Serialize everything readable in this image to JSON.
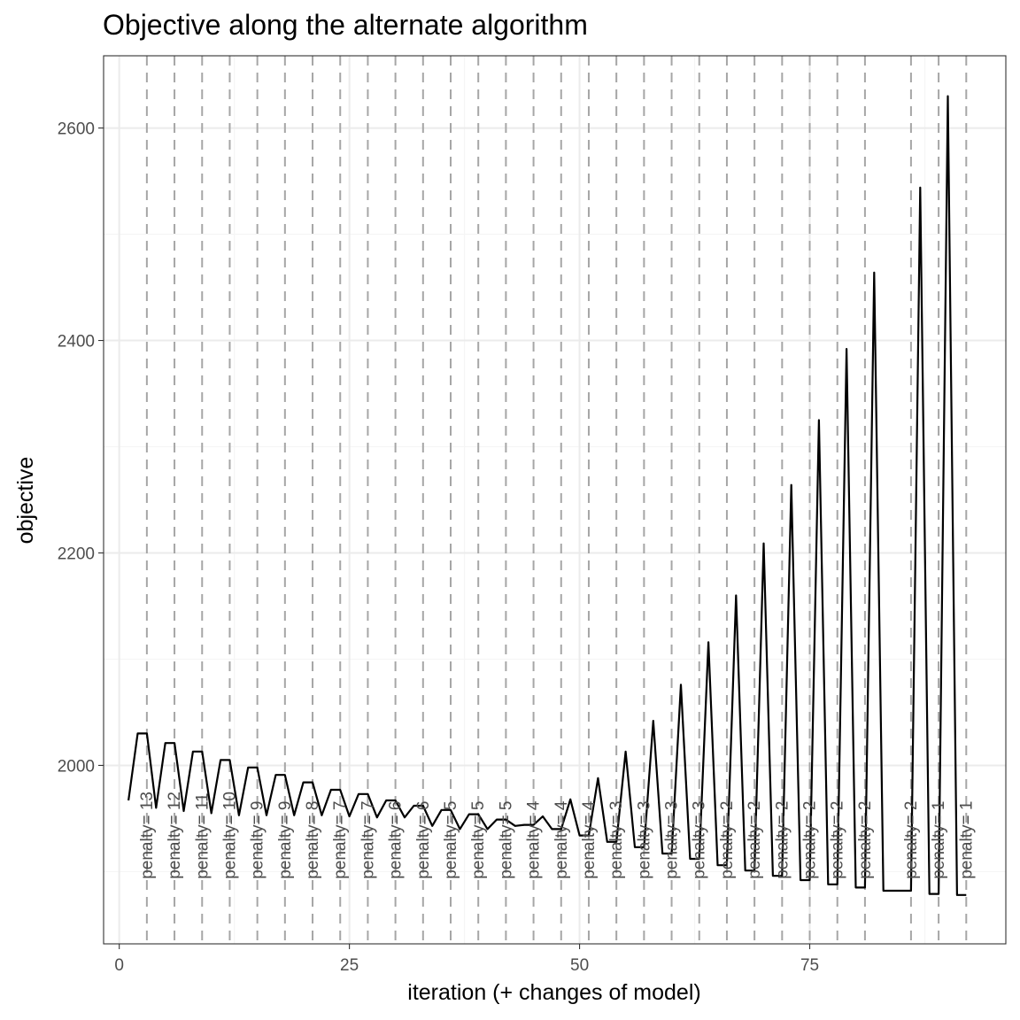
{
  "chart_data": {
    "type": "line",
    "title": "Objective along the alternate algorithm",
    "xlabel": "iteration (+ changes of model)",
    "ylabel": "objective",
    "xlim": [
      -1.7,
      96.3
    ],
    "ylim": [
      1832,
      2668
    ],
    "x_ticks": [
      0,
      25,
      50,
      75
    ],
    "x_tick_labels": [
      "0",
      "25",
      "50",
      "75"
    ],
    "y_ticks": [
      2000,
      2200,
      2400,
      2600
    ],
    "y_tick_labels": [
      "2000",
      "2200",
      "2400",
      "2600"
    ],
    "x_minor": [
      12.5,
      37.5,
      62.5,
      87.5
    ],
    "y_minor": [
      1900,
      2100,
      2300,
      2500
    ],
    "grid": true,
    "legend": "none",
    "series": [
      {
        "x": [
          1,
          2,
          3,
          4,
          5,
          6,
          7,
          8,
          9,
          10,
          11,
          12,
          13,
          14,
          15,
          16,
          17,
          18,
          19,
          20,
          21,
          22,
          23,
          24,
          25,
          26,
          27,
          28,
          29,
          30,
          31,
          32,
          33,
          34,
          35,
          36,
          37,
          38,
          39,
          40,
          41,
          42,
          43,
          44,
          45,
          46,
          47,
          48,
          49,
          50,
          51,
          52,
          53,
          54,
          55,
          56,
          57,
          58,
          59,
          60,
          61,
          62,
          63,
          64,
          65,
          66,
          67,
          68,
          69,
          70,
          71,
          72,
          73,
          74,
          75,
          76,
          77,
          78,
          79,
          80,
          81,
          82,
          83,
          84,
          85,
          86,
          87,
          88,
          89,
          90,
          91,
          92
        ],
        "y": [
          1967,
          2030,
          2030,
          1960,
          2021,
          2021,
          1957,
          2013,
          2013,
          1955,
          2005,
          2005,
          1953,
          1998,
          1998,
          1953,
          1991,
          1991,
          1953,
          1984,
          1984,
          1953,
          1977,
          1977,
          1952,
          1973,
          1973,
          1951,
          1967,
          1967,
          1951,
          1962,
          1962,
          1943,
          1958,
          1958,
          1940,
          1954,
          1954,
          1940,
          1949,
          1949,
          1943,
          1944,
          1944,
          1952,
          1940,
          1940,
          1968,
          1934,
          1934,
          1988,
          1928,
          1928,
          2013,
          1923,
          1923,
          2042,
          1917,
          1917,
          2076,
          1912,
          1912,
          2116,
          1906,
          1906,
          2160,
          1901,
          1901,
          2209,
          1896,
          1896,
          2264,
          1892,
          1892,
          2325,
          1888,
          1888,
          2392,
          1885,
          1885,
          2464,
          1882,
          1882,
          1882,
          1882,
          2544,
          1879,
          1879,
          2630,
          1878,
          1878
        ]
      }
    ],
    "vlines": [
      {
        "x": 3,
        "label": "penalty= 13"
      },
      {
        "x": 6,
        "label": "penalty= 12"
      },
      {
        "x": 9,
        "label": "penalty= 11"
      },
      {
        "x": 12,
        "label": "penalty= 10"
      },
      {
        "x": 15,
        "label": "penalty= 9"
      },
      {
        "x": 18,
        "label": "penalty= 9"
      },
      {
        "x": 21,
        "label": "penalty= 8"
      },
      {
        "x": 24,
        "label": "penalty= 7"
      },
      {
        "x": 27,
        "label": "penalty= 7"
      },
      {
        "x": 30,
        "label": "penalty= 6"
      },
      {
        "x": 33,
        "label": "penalty= 6"
      },
      {
        "x": 36,
        "label": "penalty= 5"
      },
      {
        "x": 39,
        "label": "penalty= 5"
      },
      {
        "x": 42,
        "label": "penalty= 5"
      },
      {
        "x": 45,
        "label": "penalty= 4"
      },
      {
        "x": 48,
        "label": "penalty= 4"
      },
      {
        "x": 51,
        "label": "penalty= 4"
      },
      {
        "x": 54,
        "label": "penalty= 3"
      },
      {
        "x": 57,
        "label": "penalty= 3"
      },
      {
        "x": 60,
        "label": "penalty= 3"
      },
      {
        "x": 63,
        "label": "penalty= 3"
      },
      {
        "x": 66,
        "label": "penalty= 2"
      },
      {
        "x": 69,
        "label": "penalty= 2"
      },
      {
        "x": 72,
        "label": "penalty= 2"
      },
      {
        "x": 75,
        "label": "penalty= 2"
      },
      {
        "x": 78,
        "label": "penalty= 2"
      },
      {
        "x": 81,
        "label": "penalty= 2"
      },
      {
        "x": 86,
        "label": "penalty= 2"
      },
      {
        "x": 89,
        "label": "penalty= 1"
      },
      {
        "x": 92,
        "label": "penalty= 1"
      }
    ],
    "colors": {
      "line": "#000000",
      "vline": "#a6a6a6",
      "grid_major": "#ebebeb",
      "grid_minor": "#f5f5f5",
      "panel_border": "#333333",
      "tick_text": "#4d4d4d"
    }
  }
}
